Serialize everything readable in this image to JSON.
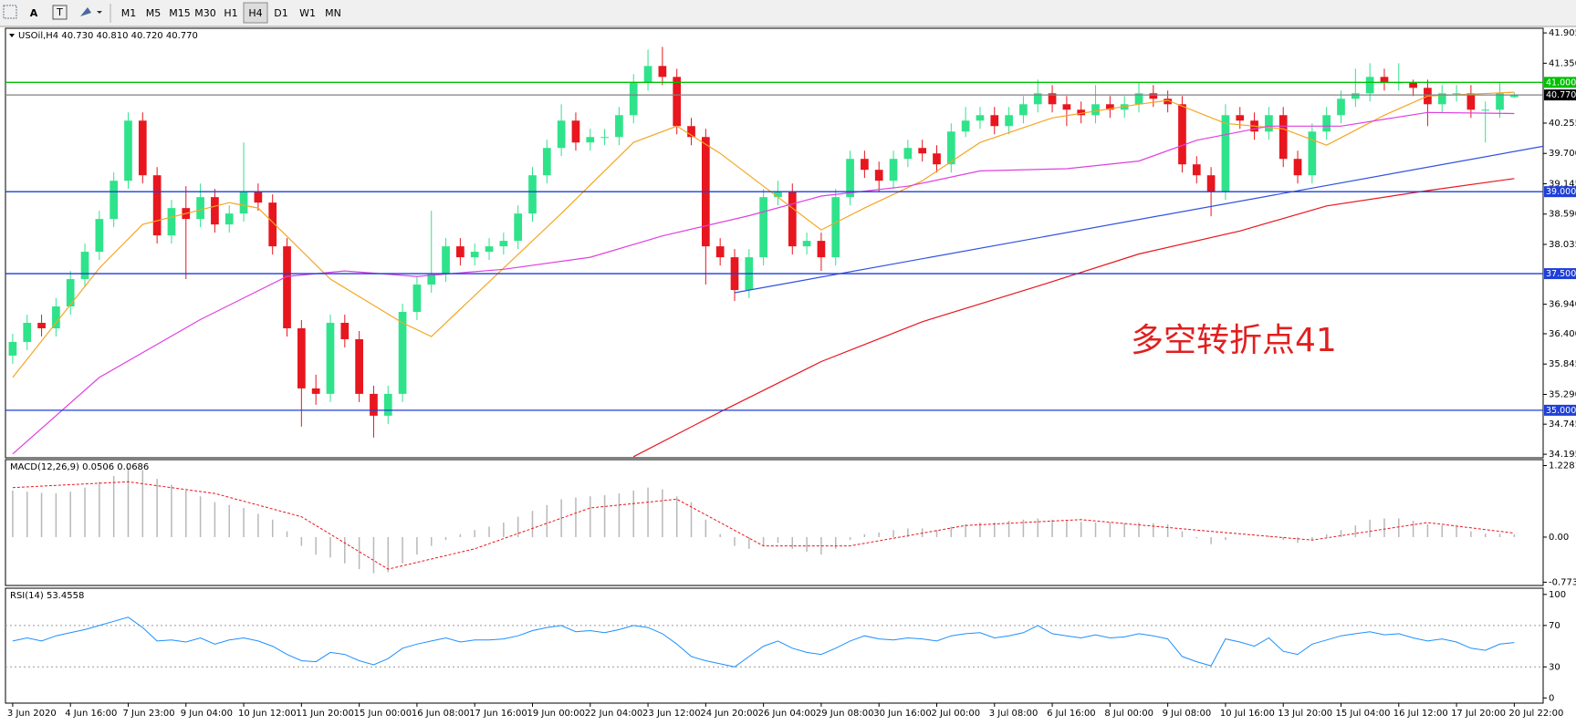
{
  "toolbar": {
    "tools": [
      "A",
      "T"
    ],
    "buttons": [
      "M1",
      "M5",
      "M15",
      "M30",
      "H1",
      "H4",
      "D1",
      "W1",
      "MN"
    ],
    "active_index": 5
  },
  "chart_data": [
    {
      "type": "candlestick",
      "title": "USOil,H4 40.730 40.810 40.720 40.770",
      "annotation": "多空转折点41",
      "annotation_color": "#e0201f",
      "xlim": [
        -0.5,
        106
      ],
      "ylim": [
        34.13,
        41.99
      ],
      "yticks": [
        41.905,
        {
          "value": 41.35,
          "label": "41.350"
        },
        40.255,
        {
          "value": 39.7,
          "label": "39.700"
        },
        39.145,
        {
          "value": 38.59,
          "label": "38.590"
        },
        38.035,
        {
          "value": 36.94,
          "label": "36.940"
        },
        {
          "value": 36.4,
          "label": "36.400"
        },
        35.845,
        {
          "value": 35.29,
          "label": "35.290"
        },
        34.745,
        34.195
      ],
      "up_color": "#2fe38b",
      "down_color": "#e8161e",
      "open": [
        36.0,
        36.25,
        36.6,
        36.5,
        36.9,
        37.4,
        37.9,
        38.5,
        39.2,
        40.3,
        39.3,
        38.2,
        38.7,
        38.5,
        38.9,
        38.4,
        38.6,
        39.0,
        38.8,
        38.0,
        36.5,
        35.4,
        35.3,
        36.6,
        36.3,
        35.3,
        34.9,
        35.3,
        36.8,
        37.3,
        37.5,
        38.0,
        37.8,
        37.9,
        38.0,
        38.1,
        38.6,
        39.3,
        39.8,
        40.3,
        39.9,
        40.0,
        40.0,
        40.4,
        41.0,
        41.3,
        41.1,
        40.2,
        40.0,
        38.0,
        37.8,
        37.2,
        37.8,
        38.9,
        39.0,
        38.0,
        38.1,
        37.8,
        38.9,
        39.6,
        39.4,
        39.2,
        39.6,
        39.8,
        39.7,
        39.5,
        40.1,
        40.3,
        40.4,
        40.2,
        40.4,
        40.6,
        40.8,
        40.6,
        40.5,
        40.4,
        40.6,
        40.5,
        40.6,
        40.8,
        40.7,
        40.6,
        39.5,
        39.3,
        39.0,
        40.4,
        40.3,
        40.1,
        40.4,
        39.6,
        39.3,
        40.1,
        40.4,
        40.7,
        40.8,
        41.1,
        41.0,
        41.0,
        40.9,
        40.6,
        40.8,
        40.8,
        40.5,
        40.5,
        40.73
      ],
      "high": [
        36.4,
        36.75,
        36.75,
        37.05,
        37.55,
        38.05,
        38.65,
        39.35,
        40.45,
        40.45,
        39.45,
        38.85,
        39.1,
        39.15,
        39.05,
        38.75,
        39.9,
        39.15,
        38.95,
        38.15,
        36.65,
        35.65,
        36.75,
        36.75,
        36.45,
        35.45,
        35.45,
        36.95,
        37.45,
        38.65,
        38.15,
        38.15,
        38.05,
        38.15,
        38.25,
        38.75,
        39.45,
        39.95,
        40.6,
        40.45,
        40.15,
        40.15,
        40.55,
        41.15,
        41.6,
        41.65,
        41.25,
        40.35,
        40.15,
        38.15,
        37.95,
        37.95,
        39.05,
        39.2,
        39.15,
        38.25,
        38.25,
        39.05,
        39.75,
        39.75,
        39.55,
        39.75,
        39.95,
        39.95,
        39.85,
        40.25,
        40.55,
        40.55,
        40.55,
        40.55,
        40.75,
        41.05,
        40.95,
        40.75,
        40.65,
        40.95,
        40.75,
        40.75,
        41.0,
        40.95,
        40.85,
        40.75,
        39.65,
        39.45,
        40.6,
        40.55,
        40.45,
        40.55,
        40.55,
        39.75,
        40.25,
        40.55,
        40.85,
        41.25,
        41.35,
        41.25,
        41.35,
        41.05,
        41.05,
        40.95,
        40.95,
        40.95,
        40.65,
        41.0,
        40.81
      ],
      "low": [
        35.85,
        36.1,
        36.35,
        36.35,
        36.75,
        37.25,
        37.75,
        38.35,
        39.05,
        39.15,
        38.05,
        38.05,
        37.4,
        38.35,
        38.25,
        38.25,
        38.45,
        38.65,
        37.85,
        36.35,
        34.7,
        35.1,
        35.15,
        36.15,
        35.15,
        34.5,
        34.75,
        35.15,
        36.65,
        37.15,
        37.35,
        37.65,
        37.65,
        37.75,
        37.85,
        37.95,
        38.45,
        39.15,
        39.65,
        39.75,
        39.75,
        39.85,
        39.85,
        40.25,
        40.85,
        40.95,
        40.05,
        39.85,
        37.3,
        37.65,
        37.0,
        37.05,
        37.65,
        38.75,
        37.85,
        37.85,
        37.55,
        37.65,
        38.75,
        39.25,
        39.0,
        39.05,
        39.45,
        39.55,
        39.35,
        39.35,
        40.0,
        40.15,
        40.05,
        40.05,
        40.25,
        40.45,
        40.45,
        40.2,
        40.25,
        40.25,
        40.35,
        40.35,
        40.45,
        40.55,
        40.45,
        39.35,
        39.15,
        38.55,
        38.85,
        40.15,
        39.95,
        39.95,
        39.45,
        39.15,
        39.15,
        39.95,
        40.25,
        40.55,
        40.65,
        40.85,
        40.85,
        40.75,
        40.2,
        40.45,
        40.65,
        40.35,
        39.9,
        40.35,
        40.72
      ],
      "close": [
        36.25,
        36.6,
        36.5,
        36.9,
        37.4,
        37.9,
        38.5,
        39.2,
        40.3,
        39.3,
        38.2,
        38.7,
        38.5,
        38.9,
        38.4,
        38.6,
        39.0,
        38.8,
        38.0,
        36.5,
        35.4,
        35.3,
        36.6,
        36.3,
        35.3,
        34.9,
        35.3,
        36.8,
        37.3,
        37.5,
        38.0,
        37.8,
        37.9,
        38.0,
        38.1,
        38.6,
        39.3,
        39.8,
        40.3,
        39.9,
        40.0,
        40.0,
        40.4,
        41.0,
        41.3,
        41.1,
        40.2,
        40.0,
        38.0,
        37.8,
        37.2,
        37.8,
        38.9,
        39.0,
        38.0,
        38.1,
        37.8,
        38.9,
        39.6,
        39.4,
        39.2,
        39.6,
        39.8,
        39.7,
        39.5,
        40.1,
        40.3,
        40.4,
        40.2,
        40.4,
        40.6,
        40.8,
        40.6,
        40.5,
        40.4,
        40.6,
        40.5,
        40.6,
        40.8,
        40.7,
        40.6,
        39.5,
        39.3,
        39.0,
        40.4,
        40.3,
        40.1,
        40.4,
        39.6,
        39.3,
        40.1,
        40.4,
        40.7,
        40.8,
        41.1,
        41.0,
        41.0,
        40.9,
        40.6,
        40.8,
        40.8,
        40.5,
        40.5,
        40.8,
        40.77
      ],
      "lines": [
        {
          "color": "#f5a623",
          "x": [
            0,
            6,
            9,
            15,
            17,
            22,
            27,
            29,
            34,
            38,
            43,
            46,
            49,
            52,
            56,
            59,
            63,
            67,
            72,
            78,
            80,
            84,
            88,
            91,
            95,
            98,
            104
          ],
          "values": [
            35.6,
            37.6,
            38.4,
            38.8,
            38.7,
            37.4,
            36.6,
            36.35,
            37.6,
            38.6,
            39.9,
            40.2,
            39.7,
            39.1,
            38.3,
            38.7,
            39.2,
            39.9,
            40.35,
            40.6,
            40.67,
            40.25,
            40.15,
            39.85,
            40.4,
            40.75,
            40.82
          ]
        },
        {
          "color": "#e040e0",
          "x": [
            0,
            6,
            13,
            19,
            23,
            28,
            34,
            40,
            45,
            51,
            56,
            62,
            67,
            73,
            78,
            82,
            87,
            92,
            98,
            104
          ],
          "values": [
            34.2,
            35.6,
            36.66,
            37.45,
            37.55,
            37.45,
            37.58,
            37.8,
            38.19,
            38.56,
            38.92,
            39.1,
            39.38,
            39.42,
            39.56,
            39.94,
            40.2,
            40.2,
            40.45,
            40.43
          ]
        },
        {
          "color": "#e8161e",
          "x": [
            43,
            49,
            56,
            63,
            71,
            78,
            85,
            91,
            98,
            104
          ],
          "values": [
            34.15,
            34.97,
            35.89,
            36.62,
            37.27,
            37.86,
            38.28,
            38.74,
            39.02,
            39.24
          ]
        },
        {
          "color": "#3050e0",
          "x": [
            50,
            106
          ],
          "values": [
            37.15,
            39.83
          ]
        }
      ],
      "levels": [
        {
          "value": 41.0,
          "label": "41.000",
          "color": "#00c000"
        },
        {
          "value": 40.77,
          "label": "40.770",
          "color": "#808080"
        },
        {
          "value": 39.0,
          "label": "39.000",
          "color": "#1f3fd8"
        },
        {
          "value": 37.5,
          "label": "37.500",
          "color": "#1f3fd8"
        },
        {
          "value": 35.0,
          "label": "35.000",
          "color": "#1f3fd8"
        }
      ]
    },
    {
      "type": "macd",
      "title": "MACD(12,26,9) 0.0506 0.0686",
      "xlim": [
        -0.5,
        106
      ],
      "ylim": [
        -0.83,
        1.33
      ],
      "yticks": [
        1.2281,
        {
          "value": 0,
          "label": "0.00"
        },
        -0.7738
      ],
      "color": "#b8b8b8",
      "values": [
        0.8,
        0.78,
        0.76,
        0.75,
        0.78,
        0.85,
        0.95,
        1.05,
        1.2,
        1.15,
        1.0,
        0.9,
        0.8,
        0.7,
        0.6,
        0.55,
        0.5,
        0.4,
        0.3,
        0.1,
        -0.15,
        -0.3,
        -0.35,
        -0.45,
        -0.55,
        -0.62,
        -0.6,
        -0.45,
        -0.3,
        -0.15,
        -0.05,
        0.05,
        0.12,
        0.18,
        0.25,
        0.35,
        0.45,
        0.55,
        0.65,
        0.68,
        0.7,
        0.72,
        0.75,
        0.8,
        0.85,
        0.82,
        0.7,
        0.6,
        0.3,
        0.05,
        -0.15,
        -0.2,
        -0.15,
        -0.1,
        -0.2,
        -0.25,
        -0.3,
        -0.2,
        -0.05,
        0.05,
        0.08,
        0.12,
        0.15,
        0.15,
        0.12,
        0.18,
        0.22,
        0.25,
        0.25,
        0.28,
        0.3,
        0.32,
        0.3,
        0.28,
        0.26,
        0.25,
        0.25,
        0.24,
        0.25,
        0.24,
        0.22,
        0.1,
        -0.02,
        -0.12,
        -0.05,
        0.0,
        0.0,
        0.02,
        -0.05,
        -0.1,
        -0.05,
        0.05,
        0.12,
        0.2,
        0.3,
        0.32,
        0.32,
        0.28,
        0.22,
        0.2,
        0.18,
        0.1,
        0.06,
        0.06,
        0.0506
      ],
      "signal": {
        "color": "#e8161e",
        "x": [
          0,
          8,
          14,
          20,
          26,
          32,
          40,
          46,
          52,
          58,
          66,
          74,
          82,
          90,
          98,
          104
        ],
        "values": [
          0.85,
          0.95,
          0.75,
          0.35,
          -0.55,
          -0.2,
          0.5,
          0.65,
          -0.15,
          -0.15,
          0.2,
          0.3,
          0.12,
          -0.05,
          0.25,
          0.0686
        ]
      }
    },
    {
      "type": "line",
      "title": "RSI(14) 53.4558",
      "xlim": [
        -0.5,
        106
      ],
      "ylim": [
        -5,
        106
      ],
      "yticks": [
        100,
        70,
        30,
        0
      ],
      "levels": [
        70,
        30
      ],
      "color": "#1e8fff",
      "values": [
        55,
        58,
        55,
        60,
        63,
        66,
        70,
        74,
        78,
        68,
        55,
        56,
        54,
        58,
        52,
        56,
        58,
        55,
        50,
        42,
        36,
        35,
        44,
        42,
        36,
        32,
        38,
        48,
        52,
        55,
        58,
        54,
        56,
        56,
        57,
        60,
        65,
        68,
        70,
        64,
        65,
        63,
        66,
        70,
        68,
        62,
        52,
        40,
        36,
        33,
        30,
        40,
        50,
        55,
        48,
        44,
        42,
        48,
        55,
        60,
        57,
        56,
        58,
        57,
        55,
        60,
        62,
        63,
        58,
        60,
        63,
        70,
        62,
        60,
        58,
        61,
        58,
        59,
        62,
        60,
        57,
        40,
        35,
        31,
        57,
        54,
        50,
        58,
        45,
        42,
        52,
        56,
        60,
        62,
        64,
        61,
        62,
        58,
        55,
        57,
        54,
        48,
        46,
        52,
        53.4558
      ],
      "xticks": [
        {
          "value": 0,
          "label": "3 Jun 2020"
        },
        {
          "value": 4,
          "label": "4 Jun 16:00"
        },
        {
          "value": 8,
          "label": "7 Jun 23:00"
        },
        {
          "value": 12,
          "label": "9 Jun 04:00"
        },
        {
          "value": 16,
          "label": "10 Jun 12:00"
        },
        {
          "value": 20,
          "label": "11 Jun 20:00"
        },
        {
          "value": 24,
          "label": "15 Jun 00:00"
        },
        {
          "value": 28,
          "label": "16 Jun 08:00"
        },
        {
          "value": 32,
          "label": "17 Jun 16:00"
        },
        {
          "value": 36,
          "label": "19 Jun 00:00"
        },
        {
          "value": 40,
          "label": "22 Jun 04:00"
        },
        {
          "value": 44,
          "label": "23 Jun 12:00"
        },
        {
          "value": 48,
          "label": "24 Jun 20:00"
        },
        {
          "value": 52,
          "label": "26 Jun 04:00"
        },
        {
          "value": 56,
          "label": "29 Jun 08:00"
        },
        {
          "value": 60,
          "label": "30 Jun 16:00"
        },
        {
          "value": 64,
          "label": "2 Jul 00:00"
        },
        {
          "value": 68,
          "label": "3 Jul 08:00"
        },
        {
          "value": 72,
          "label": "6 Jul 16:00"
        },
        {
          "value": 76,
          "label": "8 Jul 00:00"
        },
        {
          "value": 80,
          "label": "9 Jul 08:00"
        },
        {
          "value": 84,
          "label": "10 Jul 16:00"
        },
        {
          "value": 88,
          "label": "13 Jul 20:00"
        },
        {
          "value": 92,
          "label": "15 Jul 04:00"
        },
        {
          "value": 96,
          "label": "16 Jul 12:00"
        },
        {
          "value": 100,
          "label": "17 Jul 20:00"
        },
        {
          "value": 104,
          "label": "20 Jul 22:00"
        }
      ]
    }
  ]
}
